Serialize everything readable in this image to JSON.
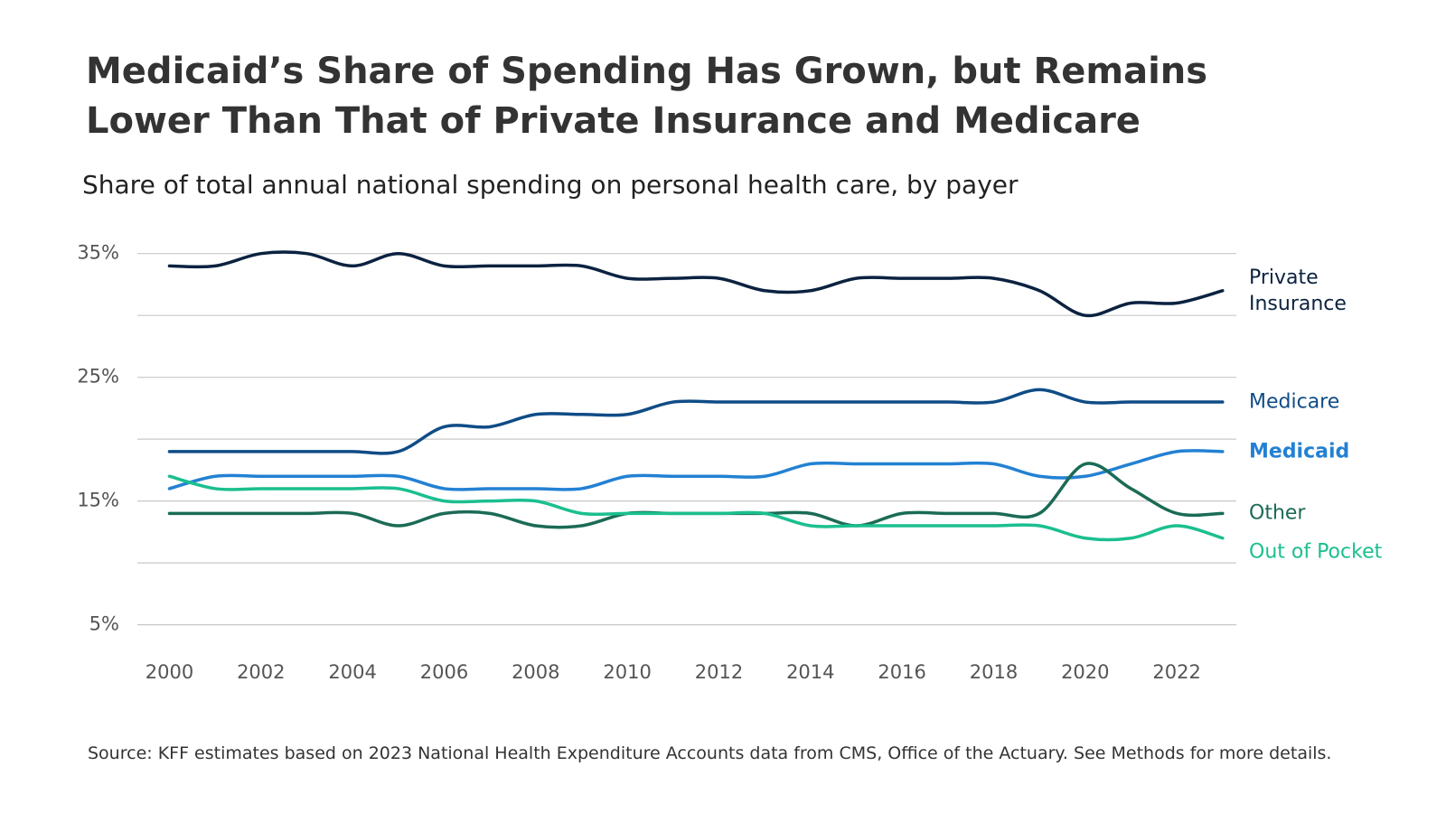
{
  "chart_data": {
    "type": "line",
    "title": "Medicaid’s Share of Spending Has Grown, but Remains Lower Than That of Private Insurance and Medicare",
    "subtitle": "Share of total annual national spending on personal health care, by payer",
    "source": "Source: KFF estimates based on 2023 National Health Expenditure Accounts data from CMS, Office of the Actuary. See Methods for more details.",
    "x": [
      2000,
      2001,
      2002,
      2003,
      2004,
      2005,
      2006,
      2007,
      2008,
      2009,
      2010,
      2011,
      2012,
      2013,
      2014,
      2015,
      2016,
      2017,
      2018,
      2019,
      2020,
      2021,
      2022,
      2023
    ],
    "xlim": [
      1999.3,
      2023.3
    ],
    "xticks": [
      2000,
      2002,
      2004,
      2006,
      2008,
      2010,
      2012,
      2014,
      2016,
      2018,
      2020,
      2022
    ],
    "ylim": [
      3,
      36
    ],
    "yticks": [
      {
        "value": 5,
        "label": "5%"
      },
      {
        "value": 10
      },
      {
        "value": 15,
        "label": "15%"
      },
      {
        "value": 20
      },
      {
        "value": 25,
        "label": "25%"
      },
      {
        "value": 30
      },
      {
        "value": 35,
        "label": "35%"
      }
    ],
    "grid": true,
    "series": [
      {
        "name": "Private Insurance",
        "color": "#0b2240",
        "values": [
          34,
          34,
          35,
          35,
          34,
          35,
          34,
          34,
          34,
          34,
          33,
          33,
          33,
          32,
          32,
          33,
          33,
          33,
          33,
          32,
          30,
          31,
          31,
          32
        ]
      },
      {
        "name": "Medicare",
        "color": "#0f4c86",
        "values": [
          19,
          19,
          19,
          19,
          19,
          19,
          21,
          21,
          22,
          22,
          22,
          23,
          23,
          23,
          23,
          23,
          23,
          23,
          23,
          24,
          23,
          23,
          23,
          23
        ]
      },
      {
        "name": "Medicaid",
        "color": "#2381d3",
        "bold": true,
        "values": [
          16,
          17,
          17,
          17,
          17,
          17,
          16,
          16,
          16,
          16,
          17,
          17,
          17,
          17,
          18,
          18,
          18,
          18,
          18,
          17,
          17,
          18,
          19,
          19
        ]
      },
      {
        "name": "Other",
        "color": "#1b6b56",
        "values": [
          14,
          14,
          14,
          14,
          14,
          13,
          14,
          14,
          13,
          13,
          14,
          14,
          14,
          14,
          14,
          13,
          14,
          14,
          14,
          14,
          18,
          16,
          14,
          14
        ]
      },
      {
        "name": "Out of Pocket",
        "color": "#1bbf8f",
        "values": [
          17,
          16,
          16,
          16,
          16,
          16,
          15,
          15,
          15,
          14,
          14,
          14,
          14,
          14,
          13,
          13,
          13,
          13,
          13,
          13,
          12,
          12,
          13,
          12
        ]
      }
    ]
  }
}
